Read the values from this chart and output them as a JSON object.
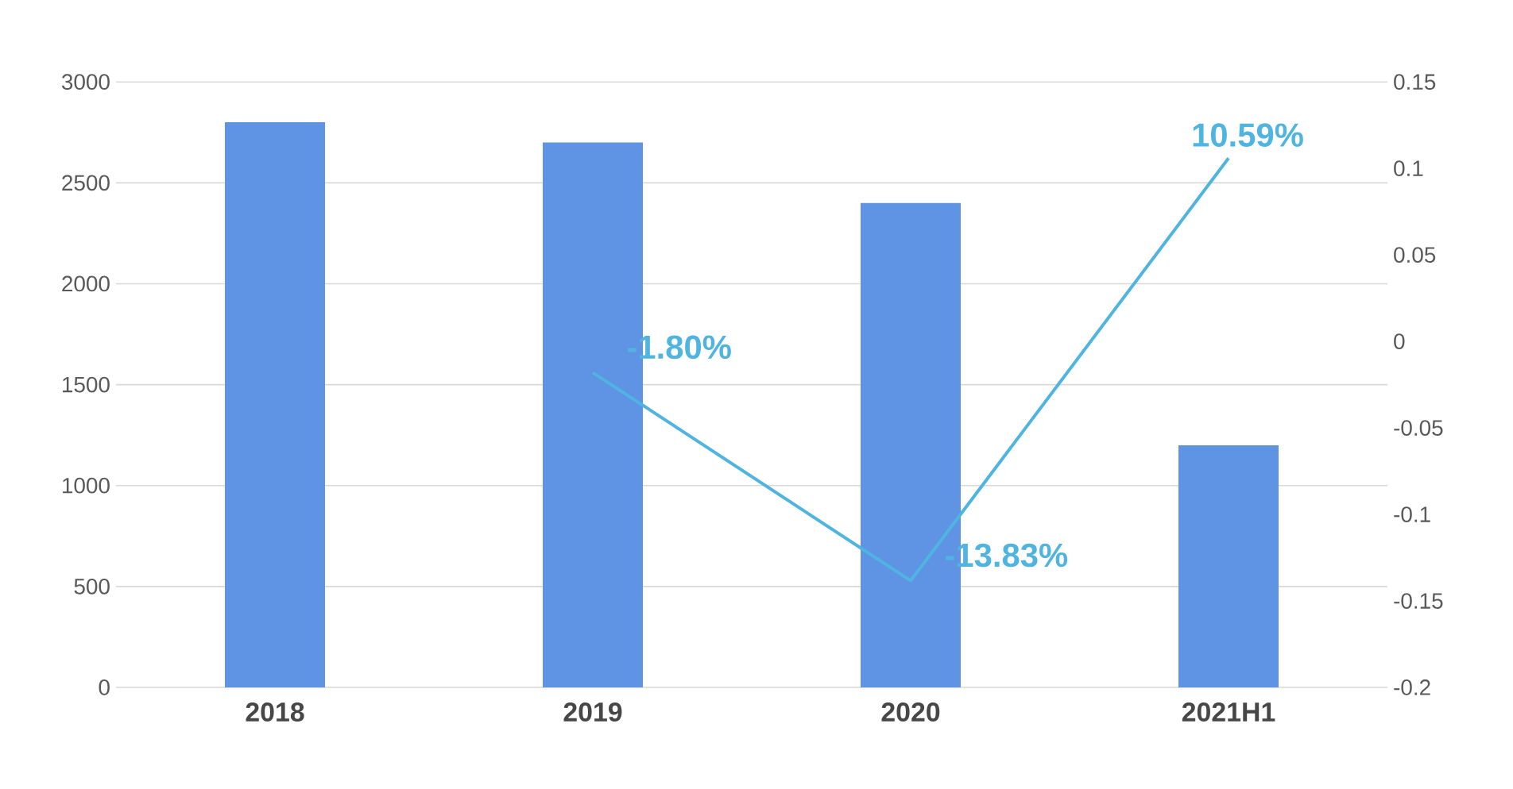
{
  "chart_data": {
    "type": "bar",
    "categories": [
      "2018",
      "2019",
      "2020",
      "2021H1"
    ],
    "series": [
      {
        "color": "#5f93e3",
        "values": [
          2800,
          2700,
          2400,
          1200
        ]
      },
      {
        "type": "line",
        "axis": "y2",
        "color": "#4fb4e0",
        "values": [
          null,
          -0.018,
          -0.1383,
          0.1059
        ],
        "value_labels": [
          null,
          "-1.80%",
          "-13.83%",
          "10.59%"
        ]
      }
    ],
    "ylim": [
      0,
      3000
    ],
    "yticks": [
      0,
      500,
      1000,
      1500,
      2000,
      2500,
      3000
    ],
    "y2lim": [
      -0.2,
      0.15
    ],
    "y2ticks": [
      -0.2,
      -0.15,
      -0.1,
      -0.05,
      0,
      0.05,
      {
        "value": 0.1,
        "label": "0.1"
      },
      0.15
    ],
    "grid": "y",
    "marker": "none",
    "line_style": "solid"
  }
}
